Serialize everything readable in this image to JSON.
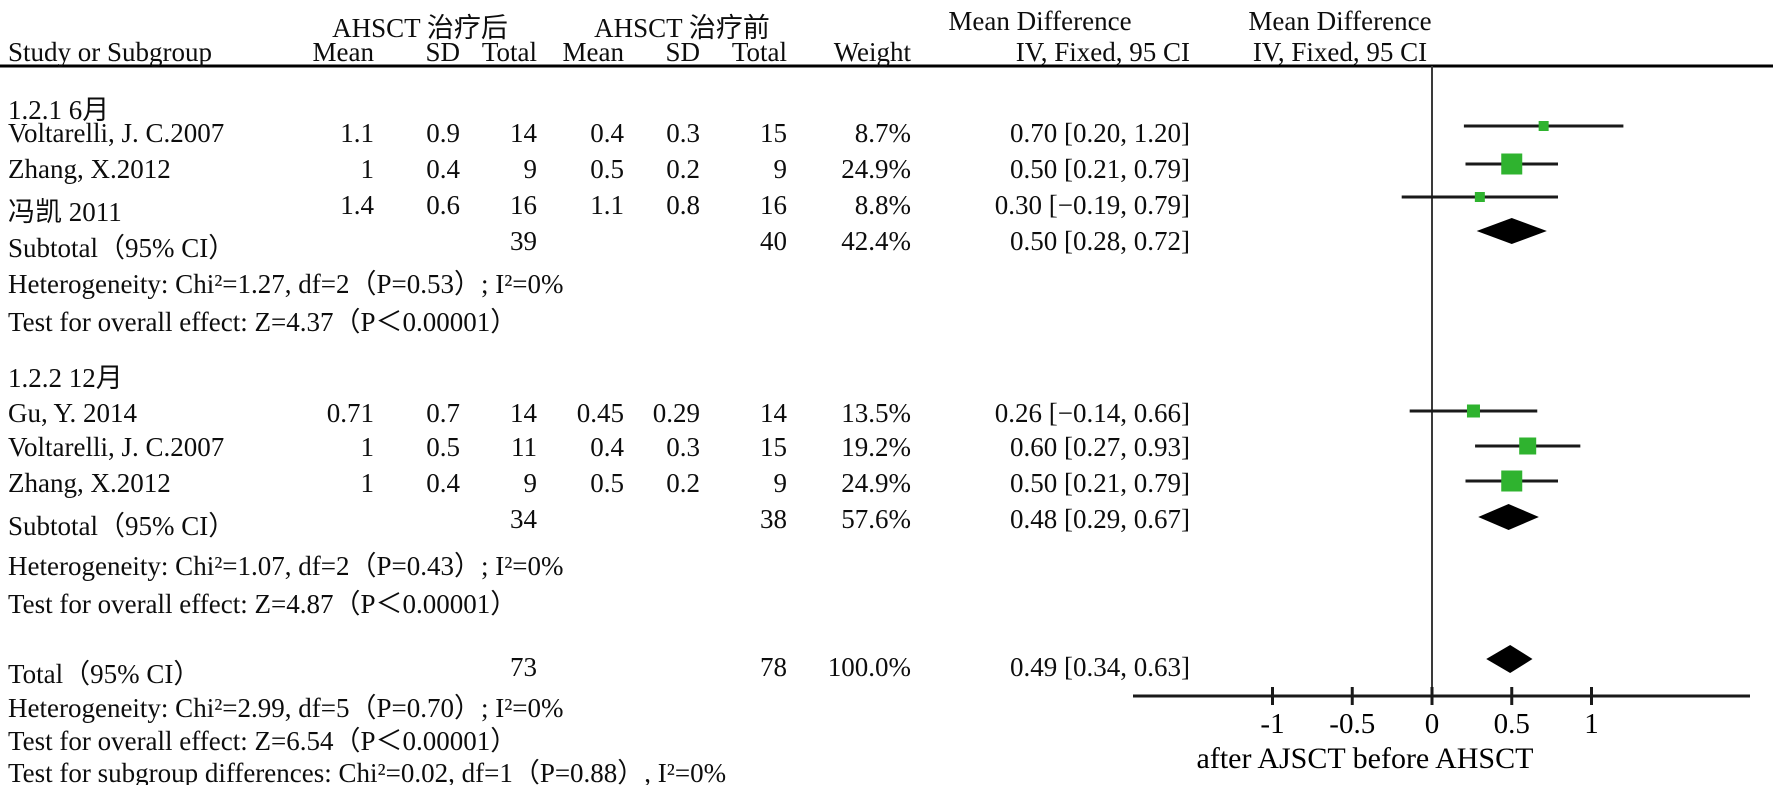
{
  "header": {
    "group_after_label": "AHSCT 治疗后",
    "group_before_label": "AHSCT 治疗前",
    "effect_col_title": "Mean Difference",
    "effect_col_subtitle": "IV, Fixed, 95 CI",
    "plot_col_title": "Mean Difference",
    "plot_col_subtitle": "IV, Fixed, 95 CI",
    "columns": {
      "study": "Study or Subgroup",
      "mean_after": "Mean",
      "sd_after": "SD",
      "total_after": "Total",
      "mean_before": "Mean",
      "sd_before": "SD",
      "total_before": "Total",
      "weight": "Weight",
      "effect": "IV, Fixed, 95 CI"
    }
  },
  "groups": [
    {
      "label": "1.2.1 6月",
      "rows": [
        {
          "study": "Voltarelli, J. C.2007",
          "mean1": "1.1",
          "sd1": "0.9",
          "total1": "14",
          "mean2": "0.4",
          "sd2": "0.3",
          "total2": "15",
          "weight": "8.7%",
          "effect": "0.70 [0.20, 1.20]"
        },
        {
          "study": "Zhang, X.2012",
          "mean1": "1",
          "sd1": "0.4",
          "total1": "9",
          "mean2": "0.5",
          "sd2": "0.2",
          "total2": "9",
          "weight": "24.9%",
          "effect": "0.50 [0.21, 0.79]"
        },
        {
          "study": "冯凯 2011",
          "mean1": "1.4",
          "sd1": "0.6",
          "total1": "16",
          "mean2": "1.1",
          "sd2": "0.8",
          "total2": "16",
          "weight": "8.8%",
          "effect": "0.30 [−0.19, 0.79]"
        }
      ],
      "subtotal": {
        "label": "Subtotal（95% CI）",
        "total1": "39",
        "total2": "40",
        "weight": "42.4%",
        "effect": "0.50 [0.28, 0.72]"
      },
      "heterogeneity": "Heterogeneity: Chi²=1.27, df=2（P=0.53）; I²=0%",
      "overall_test": "Test for overall effect: Z=4.37（P＜0.00001）"
    },
    {
      "label": "1.2.2 12月",
      "rows": [
        {
          "study": "Gu, Y. 2014",
          "mean1": "0.71",
          "sd1": "0.7",
          "total1": "14",
          "mean2": "0.45",
          "sd2": "0.29",
          "total2": "14",
          "weight": "13.5%",
          "effect": "0.26 [−0.14, 0.66]"
        },
        {
          "study": "Voltarelli, J. C.2007",
          "mean1": "1",
          "sd1": "0.5",
          "total1": "11",
          "mean2": "0.4",
          "sd2": "0.3",
          "total2": "15",
          "weight": "19.2%",
          "effect": "0.60 [0.27, 0.93]"
        },
        {
          "study": "Zhang, X.2012",
          "mean1": "1",
          "sd1": "0.4",
          "total1": "9",
          "mean2": "0.5",
          "sd2": "0.2",
          "total2": "9",
          "weight": "24.9%",
          "effect": "0.50 [0.21, 0.79]"
        }
      ],
      "subtotal": {
        "label": "Subtotal（95% CI）",
        "total1": "34",
        "total2": "38",
        "weight": "57.6%",
        "effect": "0.48 [0.29, 0.67]"
      },
      "heterogeneity": "Heterogeneity: Chi²=1.07, df=2（P=0.43）; I²=0%",
      "overall_test": "Test for overall effect: Z=4.87（P＜0.00001）"
    }
  ],
  "total": {
    "label": "Total（95% CI）",
    "total1": "73",
    "total2": "78",
    "weight": "100.0%",
    "effect": "0.49 [0.34, 0.63]",
    "heterogeneity": "Heterogeneity: Chi²=2.99, df=5（P=0.70）; I²=0%",
    "overall_test": "Test for overall effect: Z=6.54（P＜0.00001）",
    "subgroup_test": "Test for subgroup differences: Chi²=0.02, df=1（P=0.88）, I²=0%"
  },
  "colors": {
    "square_green": "#2fb32f",
    "diamond_black": "#000000",
    "line_black": "#1a1a1a"
  },
  "chart_data": {
    "type": "forest",
    "effect_measure": "Mean Difference, IV, Fixed, 95 CI",
    "studies": [
      {
        "group": "1.2.1 6月",
        "name": "Voltarelli, J. C.2007",
        "md": 0.7,
        "ci_low": 0.2,
        "ci_high": 1.2,
        "weight_pct": 8.7
      },
      {
        "group": "1.2.1 6月",
        "name": "Zhang, X.2012",
        "md": 0.5,
        "ci_low": 0.21,
        "ci_high": 0.79,
        "weight_pct": 24.9
      },
      {
        "group": "1.2.1 6月",
        "name": "冯凯 2011",
        "md": 0.3,
        "ci_low": -0.19,
        "ci_high": 0.79,
        "weight_pct": 8.8
      },
      {
        "group": "1.2.2 12月",
        "name": "Gu, Y. 2014",
        "md": 0.26,
        "ci_low": -0.14,
        "ci_high": 0.66,
        "weight_pct": 13.5
      },
      {
        "group": "1.2.2 12月",
        "name": "Voltarelli, J. C.2007",
        "md": 0.6,
        "ci_low": 0.27,
        "ci_high": 0.93,
        "weight_pct": 19.2
      },
      {
        "group": "1.2.2 12月",
        "name": "Zhang, X.2012",
        "md": 0.5,
        "ci_low": 0.21,
        "ci_high": 0.79,
        "weight_pct": 24.9
      }
    ],
    "subtotals": [
      {
        "group": "1.2.1 6月",
        "md": 0.5,
        "ci_low": 0.28,
        "ci_high": 0.72,
        "weight_pct": 42.4,
        "n_after": 39,
        "n_before": 40
      },
      {
        "group": "1.2.2 12月",
        "md": 0.48,
        "ci_low": 0.29,
        "ci_high": 0.67,
        "weight_pct": 57.6,
        "n_after": 34,
        "n_before": 38
      }
    ],
    "total": {
      "md": 0.49,
      "ci_low": 0.34,
      "ci_high": 0.63,
      "weight_pct": 100.0,
      "n_after": 73,
      "n_before": 78
    },
    "axis": {
      "ticks": [
        -1,
        -0.5,
        0,
        0.5,
        1
      ],
      "tick_labels": [
        "-1",
        "-0.5",
        "0",
        "0.5",
        "1"
      ],
      "caption": "after AJSCT before AHSCT",
      "xlim": [
        -1.9,
        2.0
      ],
      "zero_line": true
    }
  }
}
